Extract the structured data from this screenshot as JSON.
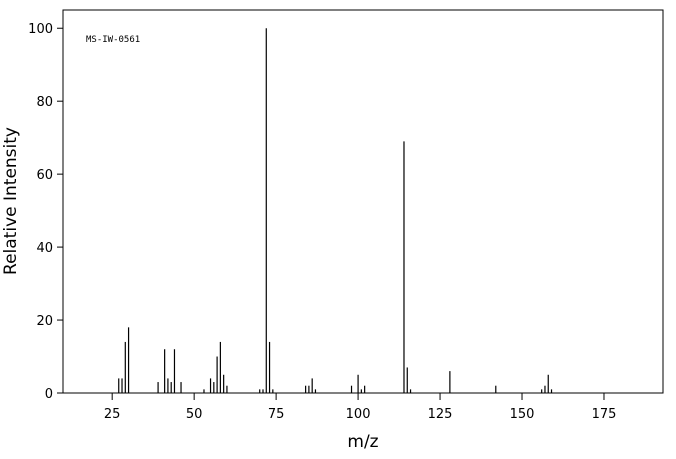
{
  "chart_data": {
    "type": "bar",
    "annotation": "MS-IW-0561",
    "x_label": "m/z",
    "y_label": "Relative Intensity",
    "x": [
      27,
      28,
      29,
      30,
      39,
      41,
      42,
      43,
      44,
      46,
      53,
      55,
      56,
      57,
      58,
      59,
      60,
      70,
      71,
      72,
      73,
      74,
      84,
      85,
      86,
      87,
      98,
      100,
      101,
      102,
      114,
      115,
      116,
      128,
      142,
      156,
      157,
      158,
      159
    ],
    "values": [
      4,
      4,
      14,
      18,
      3,
      12,
      4,
      3,
      12,
      3,
      1,
      4,
      3,
      10,
      14,
      5,
      2,
      1,
      1,
      100,
      14,
      1,
      2,
      2,
      4,
      1,
      2,
      5,
      1,
      2,
      69,
      7,
      1,
      6,
      2,
      1,
      2,
      5,
      1
    ],
    "color": "#000000",
    "xlim": [
      10,
      193
    ],
    "ylim": [
      0,
      105
    ],
    "xticks": [
      25,
      50,
      75,
      100,
      125,
      150,
      175
    ],
    "yticks": [
      0,
      20,
      40,
      60,
      80,
      100
    ],
    "grid": false
  }
}
